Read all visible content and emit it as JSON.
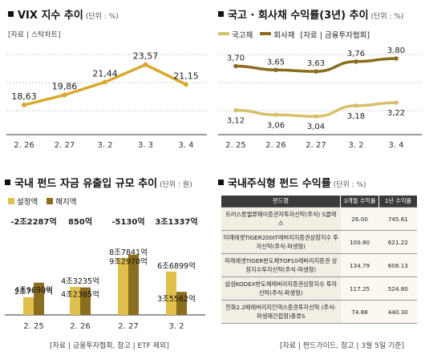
{
  "panel1": {
    "title": "VIX 지수 추이",
    "unit": "(단위 : %)",
    "source": "[자료 | 스탁차트]"
  },
  "panel2": {
    "title": "국고 · 회사채 수익률(3년) 추이",
    "unit": "(단위 : %)",
    "source": "[자료 | 금융투자협회]"
  },
  "panel3": {
    "title": "국내 펀드 자금 유출입 규모 추이",
    "unit": "(단위 : 원)",
    "source": "[자료 | 금융투자협회, 참고 | ETF 제외]"
  },
  "panel4": {
    "title": "국내주식형 펀드 수익률",
    "unit": "(단위 : %)",
    "source": "[자료 | 펀드가이드, 참고 | 3월 5일 기준]"
  },
  "chart_data": [
    {
      "type": "line",
      "title": "VIX 지수 추이",
      "x": [
        "2. 26",
        "2. 27",
        "3. 2",
        "3. 3",
        "3. 4"
      ],
      "values": [
        18.63,
        19.86,
        21.44,
        23.57,
        21.15
      ],
      "labels": [
        "18,63",
        "19,86",
        "21,44",
        "23,57",
        "21,15"
      ],
      "ylim": [
        15,
        26
      ],
      "color": "#d8a92e"
    },
    {
      "type": "line",
      "title": "국고 · 회사채 수익률(3년) 추이",
      "x": [
        "2. 25",
        "2. 26",
        "2. 27",
        "3. 2",
        "3. 4"
      ],
      "series": [
        {
          "name": "국고채",
          "values": [
            3.12,
            3.06,
            3.04,
            3.18,
            3.22
          ],
          "labels": [
            "3,12",
            "3,06",
            "3,04",
            "3,18",
            "3,22"
          ],
          "color": "#d8c06a"
        },
        {
          "name": "회사채",
          "values": [
            3.7,
            3.65,
            3.63,
            3.76,
            3.8
          ],
          "labels": [
            "3,70",
            "3,65",
            "3,63",
            "3,76",
            "3,80"
          ],
          "color": "#8a6d1e"
        }
      ],
      "ylim": [
        2.8,
        4.0
      ]
    },
    {
      "type": "bar",
      "title": "국내 펀드 자금 유출입 규모 추이",
      "categories": [
        "2. 25",
        "2. 26",
        "2. 27",
        "3. 2"
      ],
      "series": [
        {
          "name": "설정액",
          "values": [
            2.7404,
            4.3235,
            8.7841,
            6.6899
          ],
          "labels": [
            "2조7404억",
            "4조3235억",
            "8조7841억",
            "6조6899억"
          ],
          "color": "#e0bf4c"
        },
        {
          "name": "해지액",
          "values": [
            4.969,
            4.2385,
            9.297,
            3.5562
          ],
          "labels": [
            "4조9690억",
            "4조2385억",
            "9조2970억",
            "3조5562억"
          ],
          "color": "#8a6d1e"
        }
      ],
      "net_flows": [
        "-2조2287억",
        "850억",
        "-5130억",
        "3조1337억"
      ],
      "ylim": [
        0,
        10
      ]
    },
    {
      "type": "table",
      "title": "국내주식형 펀드 수익률",
      "columns": [
        "펀드명",
        "3개월 수익률",
        "1년 수익률"
      ],
      "rows": [
        {
          "name": "트러스톤밸류웨이증권자투자신탁(주식) S클래스",
          "m3": "26.00",
          "y1": "745.61"
        },
        {
          "name": "미래에셋TIGER200IT레버리지증권상장지수 투자신탁(주식-파생형)",
          "m3": "100.80",
          "y1": "621.22"
        },
        {
          "name": "미래에셋TIGER반도체TOP10레버리지증권 상장지수투자신탁(주식-파생형)",
          "m3": "134.79",
          "y1": "608.13"
        },
        {
          "name": "삼성KODEX반도체레버리지증권상장지수 투자신탁(주식-파생형)",
          "m3": "117.25",
          "y1": "524.80"
        },
        {
          "name": "한화2.2배레버리지인덱스증권투자신탁 (주식-파생재간접형)종류S",
          "m3": "74.88",
          "y1": "440.30"
        }
      ]
    }
  ]
}
